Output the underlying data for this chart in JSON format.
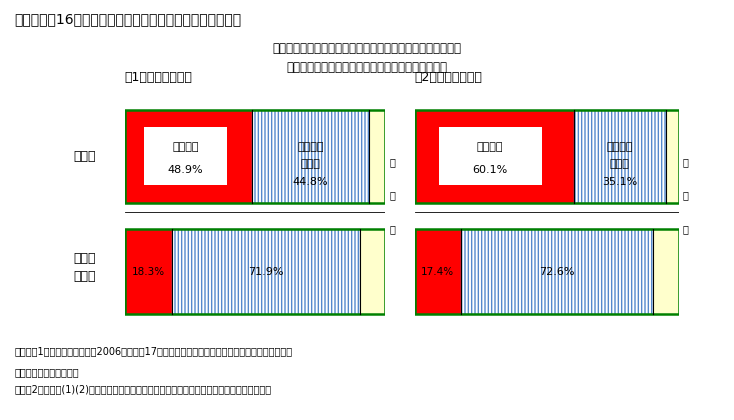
{
  "title": "第３－４－16図　正社員と非正規従業員の企業内訓練の差",
  "subtitle_line1": "企業の計画的ＯＪＴ、Ｏｆｆ－ＪＴによる訓練の実施には、",
  "subtitle_line2": "正社員と非正規従業員との間で大きな差がみられる",
  "chart1_title": "（1）計画的ＯＪＴ",
  "chart2_title": "（2）Ｏｆｆ－ＪＴ",
  "chart1": {
    "seishain": {
      "jisshi": 48.9,
      "mijisshi": 44.8,
      "mukaito": 6.3
    },
    "hiseiki": {
      "jisshi": 18.3,
      "mijisshi": 71.9,
      "mukaito": 9.8
    }
  },
  "chart2": {
    "seishain": {
      "jisshi": 60.1,
      "mijisshi": 35.1,
      "mukaito": 4.8
    },
    "hiseiki": {
      "jisshi": 17.4,
      "mijisshi": 72.6,
      "mukaito": 10.0
    }
  },
  "label_jisshi": "実施した",
  "label_mijisshi_1": "実施して",
  "label_mijisshi_2": "いない",
  "label_mukaito": "無\n回\n答",
  "row_label_1": "正社員",
  "row_label_2": "非正規\n従業員",
  "color_jisshi": "#ff0000",
  "color_mukaito": "#ffffcc",
  "color_hatch_fg": "#5588cc",
  "color_border_outer": "#008000",
  "color_border_inner": "#000000",
  "note1": "（備考）1．三菱総合研究所（2006）「平成17年度　厚生労働省委託　能力開発基本調査報告書」",
  "note2": "　　　　　により作成。",
  "note3": "　　　2．なお、(1)(2)とも、正社員と非正規従業員の訓練割合は、１％水準で統計的に有意",
  "background": "#ffffff"
}
